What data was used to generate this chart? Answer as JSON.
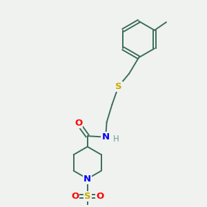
{
  "background_color": "#eff2ef",
  "bond_color": "#3a6b5a",
  "atom_colors": {
    "O": "#ff0000",
    "N": "#0000ee",
    "S_thio": "#ccaa00",
    "S_sulfonyl": "#ccaa00",
    "H": "#6a9a9a",
    "C": "#3a6b5a"
  },
  "figsize": [
    3.0,
    3.0
  ],
  "dpi": 100
}
